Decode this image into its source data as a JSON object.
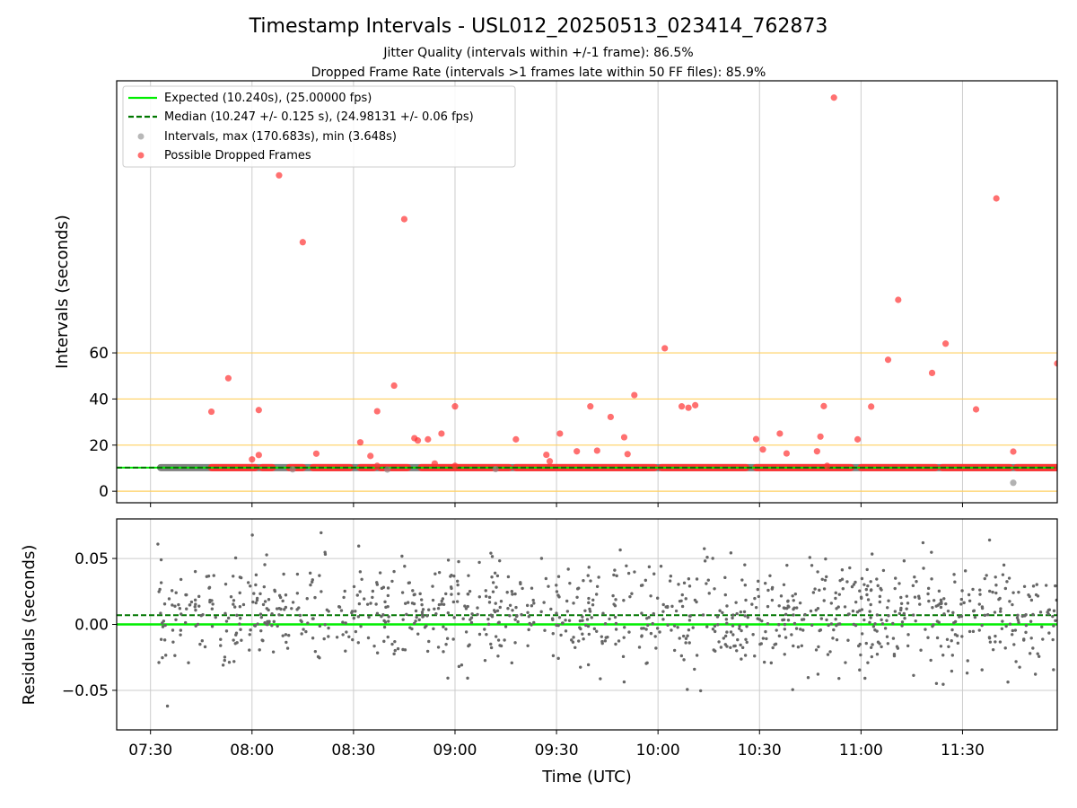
{
  "figure": {
    "title": "Timestamp Intervals - USL012_20250513_023414_762873",
    "subtitle_1": "Jitter Quality (intervals within +/-1 frame): 86.5%",
    "subtitle_2": "Dropped Frame Rate (intervals >1 frames late within 50 FF files): 85.9%",
    "xlabel": "Time (UTC)"
  },
  "colors": {
    "expected": "#00ee00",
    "median": "#007700",
    "intervals": "#888888",
    "dropped": "#ff3333",
    "reference_lines": "#ffd060",
    "residual_points": "#666666",
    "grid": "#cccccc"
  },
  "chart_data": [
    {
      "type": "scatter",
      "panel": "top",
      "ylabel": "Intervals (seconds)",
      "x_ticks": [
        "07:30",
        "08:00",
        "08:30",
        "09:00",
        "09:30",
        "10:00",
        "10:30",
        "11:00",
        "11:30"
      ],
      "y_ticks": [
        0,
        20,
        40,
        60
      ],
      "xlim": [
        "07:20",
        "11:58"
      ],
      "ylim": [
        -5,
        178
      ],
      "grid": "vertical at x ticks",
      "reference_lines_y": [
        0,
        20,
        40,
        60
      ],
      "legend_position": "top-left",
      "legend": [
        "Expected (10.240s), (25.00000 fps)",
        "Median (10.247 +/- 0.125 s), (24.98131 +/- 0.06 fps)",
        "Intervals, max (170.683s), min (3.648s)",
        "Possible Dropped Frames"
      ],
      "expected_interval": 10.24,
      "median_interval": 10.247,
      "normal_band": {
        "y": 10.24,
        "x_ranges": [
          [
            "07:33",
            "11:58"
          ]
        ]
      },
      "dropped_band_segments": [
        [
          "07:48",
          "08:01"
        ],
        [
          "08:03",
          "08:06"
        ],
        [
          "08:11",
          "08:15"
        ],
        [
          "08:18",
          "08:29"
        ],
        [
          "08:32",
          "08:36"
        ],
        [
          "08:38",
          "08:46"
        ],
        [
          "08:50",
          "09:16"
        ],
        [
          "09:18",
          "09:59"
        ],
        [
          "10:01",
          "10:26"
        ],
        [
          "10:29",
          "10:57"
        ],
        [
          "11:00",
          "11:22"
        ],
        [
          "11:24",
          "11:44"
        ],
        [
          "11:46",
          "11:58"
        ]
      ],
      "series": [
        {
          "name": "Possible Dropped Frames",
          "points": [
            [
              "07:48",
              34.5
            ],
            [
              "07:53",
              49
            ],
            [
              "08:00",
              13.8
            ],
            [
              "08:02",
              15.7
            ],
            [
              "08:02",
              35.2
            ],
            [
              "08:08",
              137
            ],
            [
              "08:15",
              108
            ],
            [
              "08:19",
              16.3
            ],
            [
              "08:32",
              21.2
            ],
            [
              "08:35",
              15.3
            ],
            [
              "08:37",
              34.7
            ],
            [
              "08:37",
              11
            ],
            [
              "08:42",
              45.8
            ],
            [
              "08:45",
              118
            ],
            [
              "08:48",
              23
            ],
            [
              "08:49",
              22
            ],
            [
              "08:52",
              22.5
            ],
            [
              "08:54",
              12
            ],
            [
              "08:56",
              25
            ],
            [
              "09:00",
              36.8
            ],
            [
              "09:00",
              11
            ],
            [
              "09:18",
              22.5
            ],
            [
              "09:27",
              15.8
            ],
            [
              "09:28",
              13
            ],
            [
              "09:31",
              25
            ],
            [
              "09:36",
              17.3
            ],
            [
              "09:40",
              36.8
            ],
            [
              "09:42",
              17.6
            ],
            [
              "09:46",
              32.2
            ],
            [
              "09:50",
              23.4
            ],
            [
              "09:51",
              16.1
            ],
            [
              "09:53",
              41.7
            ],
            [
              "10:02",
              62
            ],
            [
              "10:07",
              36.8
            ],
            [
              "10:09",
              36.2
            ],
            [
              "10:11",
              37.3
            ],
            [
              "10:29",
              22.6
            ],
            [
              "10:31",
              18.1
            ],
            [
              "10:36",
              25
            ],
            [
              "10:38",
              16.4
            ],
            [
              "10:47",
              17.3
            ],
            [
              "10:48",
              23.7
            ],
            [
              "10:49",
              36.9
            ],
            [
              "10:50",
              11
            ],
            [
              "10:52",
              170.7
            ],
            [
              "11:03",
              36.7
            ],
            [
              "10:59",
              22.5
            ],
            [
              "11:08",
              57
            ],
            [
              "11:11",
              83
            ],
            [
              "11:21",
              51.3
            ],
            [
              "11:25",
              64
            ],
            [
              "11:34",
              35.5
            ],
            [
              "11:40",
              127
            ],
            [
              "11:45",
              17.2
            ],
            [
              "11:58",
              55.4
            ],
            [
              "11:58",
              10.2
            ]
          ]
        },
        {
          "name": "Intervals, max (170.683s), min (3.648s)",
          "points": [
            [
              "11:45",
              3.65
            ],
            [
              "08:12",
              9.5
            ],
            [
              "08:40",
              9.4
            ],
            [
              "09:12",
              9.6
            ]
          ]
        }
      ]
    },
    {
      "type": "scatter",
      "panel": "bottom",
      "ylabel": "Residuals (seconds)",
      "y_ticks": [
        "0.05",
        "0.00",
        "−0.05"
      ],
      "ylim": [
        -0.08,
        0.08
      ],
      "grid": true,
      "expected_residual": 0.0,
      "median_residual": 0.007,
      "residual_distribution": {
        "x_range": [
          "07:32",
          "11:58"
        ],
        "count": 1050,
        "mean": 0.007,
        "spread": 0.022
      }
    }
  ]
}
